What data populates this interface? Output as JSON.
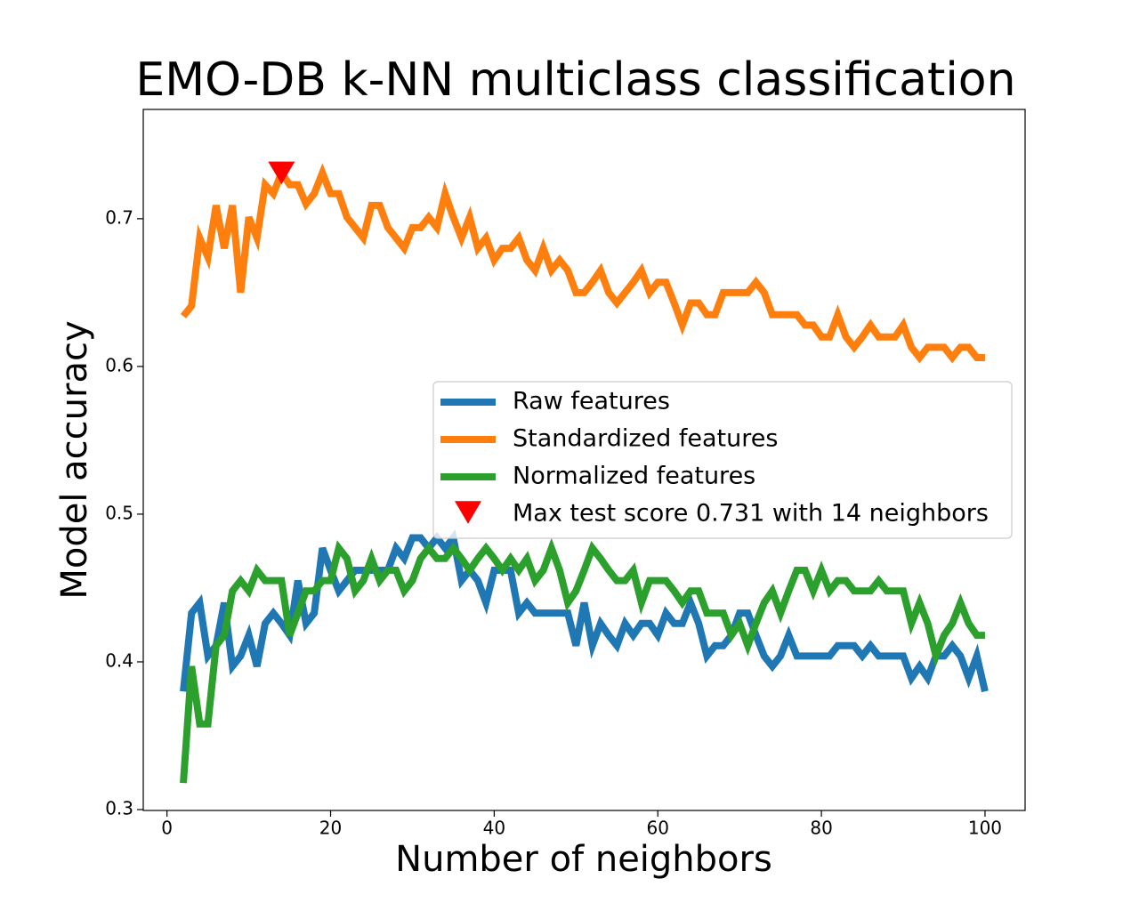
{
  "chart_data": {
    "type": "line",
    "title": "EMO-DB k-NN multiclass classification",
    "x_label": "Number of neighbors",
    "y_label": "Model accuracy",
    "x": [
      2,
      3,
      4,
      5,
      6,
      7,
      8,
      9,
      10,
      11,
      12,
      13,
      14,
      15,
      16,
      17,
      18,
      19,
      20,
      21,
      22,
      23,
      24,
      25,
      26,
      27,
      28,
      29,
      30,
      31,
      32,
      33,
      34,
      35,
      36,
      37,
      38,
      39,
      40,
      41,
      42,
      43,
      44,
      45,
      46,
      47,
      48,
      49,
      50,
      51,
      52,
      53,
      54,
      55,
      56,
      57,
      58,
      59,
      60,
      61,
      62,
      63,
      64,
      65,
      66,
      67,
      68,
      69,
      70,
      71,
      72,
      73,
      74,
      75,
      76,
      77,
      78,
      79,
      80,
      81,
      82,
      83,
      84,
      85,
      86,
      87,
      88,
      89,
      90,
      91,
      92,
      93,
      94,
      95,
      96,
      97,
      98,
      99,
      100
    ],
    "series": [
      {
        "name": "Raw features",
        "color": "#1f77b4",
        "values": [
          0.38,
          0.433,
          0.44,
          0.404,
          0.411,
          0.44,
          0.397,
          0.404,
          0.418,
          0.397,
          0.426,
          0.433,
          0.426,
          0.418,
          0.455,
          0.426,
          0.433,
          0.477,
          0.462,
          0.448,
          0.455,
          0.462,
          0.462,
          0.462,
          0.462,
          0.462,
          0.477,
          0.47,
          0.484,
          0.484,
          0.477,
          0.484,
          0.477,
          0.484,
          0.455,
          0.462,
          0.455,
          0.44,
          0.462,
          0.462,
          0.462,
          0.433,
          0.44,
          0.433,
          0.433,
          0.433,
          0.433,
          0.433,
          0.411,
          0.44,
          0.411,
          0.426,
          0.418,
          0.411,
          0.426,
          0.418,
          0.426,
          0.426,
          0.418,
          0.433,
          0.426,
          0.426,
          0.44,
          0.426,
          0.404,
          0.411,
          0.411,
          0.418,
          0.433,
          0.433,
          0.418,
          0.404,
          0.397,
          0.404,
          0.418,
          0.404,
          0.404,
          0.404,
          0.404,
          0.404,
          0.411,
          0.411,
          0.411,
          0.404,
          0.411,
          0.404,
          0.404,
          0.404,
          0.404,
          0.389,
          0.397,
          0.389,
          0.404,
          0.404,
          0.411,
          0.404,
          0.389,
          0.404,
          0.38
        ]
      },
      {
        "name": "Standardized features",
        "color": "#ff7f0e",
        "values": [
          0.634,
          0.641,
          0.687,
          0.674,
          0.709,
          0.68,
          0.709,
          0.65,
          0.701,
          0.687,
          0.723,
          0.717,
          0.731,
          0.723,
          0.723,
          0.71,
          0.717,
          0.731,
          0.717,
          0.717,
          0.701,
          0.694,
          0.687,
          0.709,
          0.709,
          0.694,
          0.687,
          0.68,
          0.694,
          0.694,
          0.701,
          0.694,
          0.717,
          0.701,
          0.687,
          0.701,
          0.68,
          0.687,
          0.672,
          0.68,
          0.68,
          0.687,
          0.672,
          0.665,
          0.68,
          0.665,
          0.672,
          0.665,
          0.65,
          0.65,
          0.657,
          0.665,
          0.65,
          0.643,
          0.65,
          0.657,
          0.665,
          0.65,
          0.657,
          0.657,
          0.643,
          0.628,
          0.643,
          0.643,
          0.635,
          0.635,
          0.65,
          0.65,
          0.65,
          0.65,
          0.657,
          0.65,
          0.635,
          0.635,
          0.635,
          0.635,
          0.628,
          0.628,
          0.62,
          0.62,
          0.635,
          0.62,
          0.613,
          0.62,
          0.628,
          0.62,
          0.62,
          0.62,
          0.628,
          0.613,
          0.606,
          0.613,
          0.613,
          0.613,
          0.606,
          0.613,
          0.613,
          0.606,
          0.606
        ]
      },
      {
        "name": "Normalized features",
        "color": "#2ca02c",
        "values": [
          0.318,
          0.397,
          0.358,
          0.358,
          0.411,
          0.418,
          0.448,
          0.455,
          0.448,
          0.462,
          0.455,
          0.455,
          0.455,
          0.418,
          0.433,
          0.448,
          0.448,
          0.455,
          0.455,
          0.477,
          0.47,
          0.448,
          0.455,
          0.47,
          0.455,
          0.462,
          0.462,
          0.448,
          0.455,
          0.47,
          0.477,
          0.47,
          0.47,
          0.477,
          0.47,
          0.462,
          0.47,
          0.477,
          0.47,
          0.462,
          0.47,
          0.462,
          0.47,
          0.455,
          0.462,
          0.477,
          0.462,
          0.44,
          0.448,
          0.462,
          0.477,
          0.47,
          0.462,
          0.455,
          0.455,
          0.462,
          0.44,
          0.455,
          0.455,
          0.455,
          0.448,
          0.44,
          0.448,
          0.448,
          0.433,
          0.433,
          0.433,
          0.418,
          0.426,
          0.411,
          0.426,
          0.44,
          0.448,
          0.433,
          0.448,
          0.462,
          0.462,
          0.448,
          0.462,
          0.448,
          0.455,
          0.455,
          0.448,
          0.448,
          0.448,
          0.455,
          0.448,
          0.448,
          0.448,
          0.426,
          0.44,
          0.426,
          0.404,
          0.418,
          0.426,
          0.44,
          0.426,
          0.418,
          0.418
        ]
      },
      {
        "name": "Max test score 0.731 with 14 neighbors",
        "color": "#ff0000",
        "marker": "triangle_down",
        "x": [
          14
        ],
        "values": [
          0.731
        ]
      }
    ],
    "xlim": [
      -2.9,
      104.9
    ],
    "ylim": [
      0.2994,
      0.774
    ],
    "xticks": [
      0,
      20,
      40,
      60,
      80,
      100
    ],
    "yticks": [
      0.3,
      0.4,
      0.5,
      0.6,
      0.7
    ],
    "legend": "center right"
  }
}
